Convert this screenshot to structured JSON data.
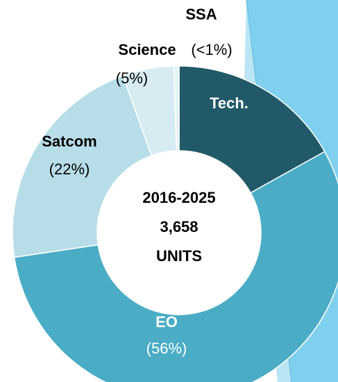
{
  "chart_data": {
    "type": "donut",
    "categories": [
      "Tech.",
      "EO",
      "Satcom",
      "Science",
      "SSA"
    ],
    "values": [
      17,
      56,
      22,
      5,
      0.5
    ],
    "value_labels": [
      null,
      "(56%)",
      "(22%)",
      "(5%)",
      "(<1%)"
    ],
    "colors": [
      "#215968",
      "#4bacc6",
      "#b7dde8",
      "#d6ebf2",
      "#e4f2f7"
    ],
    "center_text": [
      "2016-2025",
      "3,658",
      "UNITS"
    ]
  }
}
